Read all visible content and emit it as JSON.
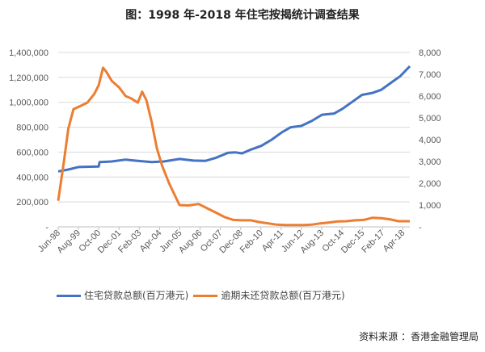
{
  "chart_data": {
    "type": "line",
    "title": "图：1998 年-2018 年住宅按揭统计调查结果",
    "x_tick_labels": [
      "Jun-98",
      "Aug-99",
      "Oct-00",
      "Dec-01",
      "Feb-03",
      "Apr-04",
      "Jun-05",
      "Aug-06",
      "Oct-07",
      "Dec-08",
      "Feb-10",
      "Apr-11",
      "Jun-12",
      "Aug-13",
      "Oct-14",
      "Dec-15",
      "Feb-17",
      "Apr-18"
    ],
    "x_tick_values": [
      1998.42,
      1999.58,
      2000.75,
      2001.92,
      2003.08,
      2004.25,
      2005.42,
      2006.58,
      2007.75,
      2008.92,
      2010.08,
      2011.25,
      2012.42,
      2013.58,
      2014.75,
      2015.92,
      2017.08,
      2018.25
    ],
    "xlim": [
      1998.42,
      2018.65
    ],
    "y_left": {
      "ylim": [
        0,
        1400000
      ],
      "tick_labels": [
        "-",
        "200,000",
        "400,000",
        "600,000",
        "800,000",
        "1,000,000",
        "1,200,000",
        "1,400,000"
      ]
    },
    "y_right": {
      "ylim": [
        0,
        8000
      ],
      "tick_labels": [
        "-",
        "1,000",
        "2,000",
        "3,000",
        "4,000",
        "5,000",
        "6,000",
        "7,000",
        "8,000"
      ]
    },
    "grid": true,
    "legend_placement": "bottom",
    "series": [
      {
        "name": "住宅贷款总额(百万港元)",
        "axis": "left",
        "color": "#4472C4",
        "x": [
          1998.42,
          1999.0,
          1999.58,
          2000.0,
          2000.75,
          2000.8,
          2001.5,
          2002.3,
          2003.0,
          2003.8,
          2004.5,
          2005.4,
          2006.2,
          2006.9,
          2007.5,
          2008.2,
          2008.6,
          2009.0,
          2009.5,
          2010.1,
          2010.7,
          2011.3,
          2011.8,
          2012.4,
          2013.0,
          2013.6,
          2014.3,
          2014.8,
          2015.3,
          2015.9,
          2016.5,
          2017.0,
          2017.6,
          2018.1,
          2018.65
        ],
        "values": [
          445000,
          460000,
          480000,
          482000,
          485000,
          520000,
          525000,
          540000,
          530000,
          520000,
          525000,
          545000,
          532000,
          530000,
          555000,
          595000,
          598000,
          590000,
          620000,
          650000,
          700000,
          760000,
          800000,
          810000,
          850000,
          900000,
          910000,
          950000,
          1000000,
          1060000,
          1075000,
          1100000,
          1160000,
          1210000,
          1290000
        ]
      },
      {
        "name": "逾期未还贷款总额(百万港元)",
        "axis": "right",
        "color": "#ED7D31",
        "x": [
          1998.42,
          1998.75,
          1999.0,
          1999.3,
          1999.58,
          2000.1,
          2000.5,
          2000.75,
          2001.0,
          2001.2,
          2001.5,
          2001.92,
          2002.3,
          2002.6,
          2003.0,
          2003.25,
          2003.5,
          2003.8,
          2004.1,
          2004.4,
          2004.8,
          2005.1,
          2005.4,
          2005.9,
          2006.5,
          2007.0,
          2007.5,
          2008.0,
          2008.5,
          2009.0,
          2009.5,
          2010.0,
          2010.5,
          2011.0,
          2011.5,
          2012.0,
          2012.5,
          2013.0,
          2013.5,
          2014.0,
          2014.5,
          2015.0,
          2015.5,
          2016.0,
          2016.5,
          2017.0,
          2017.5,
          2018.0,
          2018.65
        ],
        "values": [
          1200,
          3000,
          4500,
          5400,
          5500,
          5700,
          6100,
          6500,
          7300,
          7100,
          6700,
          6400,
          6000,
          5900,
          5700,
          6200,
          5800,
          4800,
          3600,
          2800,
          2000,
          1500,
          1000,
          980,
          1050,
          850,
          650,
          450,
          320,
          300,
          300,
          220,
          160,
          100,
          80,
          80,
          80,
          100,
          160,
          200,
          250,
          260,
          300,
          320,
          420,
          400,
          350,
          260,
          260
        ]
      }
    ]
  },
  "legend": [
    "住宅贷款总额(百万港元)",
    "逾期未还贷款总额(百万港元)"
  ],
  "source": "资料来源 ：香港金融管理局"
}
